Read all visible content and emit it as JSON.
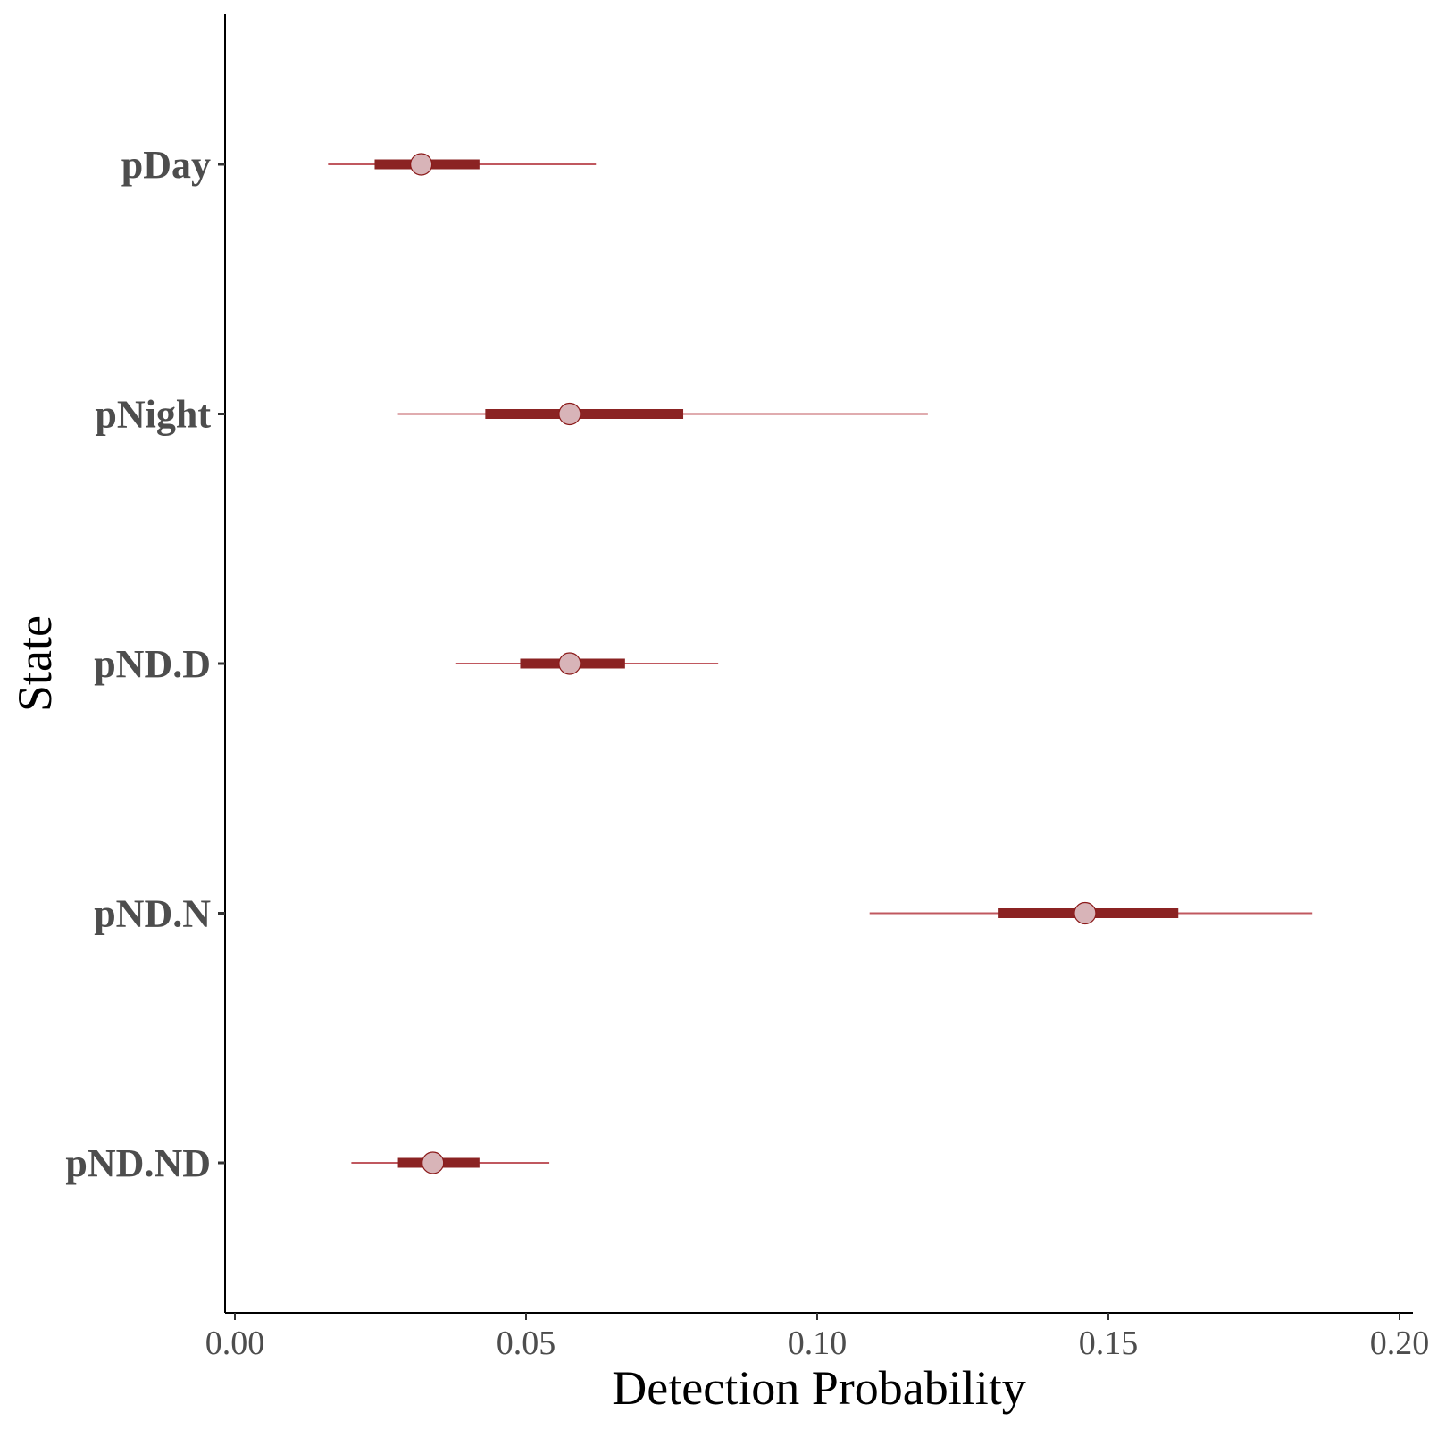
{
  "chart_data": {
    "type": "scatter",
    "subtype": "interval",
    "xlabel": "Detection Probability",
    "ylabel": "State",
    "xlim": [
      -0.0017,
      0.2017
    ],
    "xticks": [
      "0.00",
      "0.05",
      "0.10",
      "0.15",
      "0.20"
    ],
    "xtick_values": [
      0.0,
      0.05,
      0.1,
      0.15,
      0.2
    ],
    "grid": false,
    "categories": [
      "pDay",
      "pNight",
      "pND.D",
      "pND.N",
      "pND.ND"
    ],
    "series": [
      {
        "point": [
          0.032,
          0.0575,
          0.0575,
          0.146,
          0.034
        ],
        "inner_low": [
          0.024,
          0.043,
          0.049,
          0.131,
          0.028
        ],
        "inner_high": [
          0.042,
          0.077,
          0.067,
          0.162,
          0.042
        ],
        "outer_low": [
          0.016,
          0.028,
          0.038,
          0.109,
          0.02
        ],
        "outer_high": [
          0.062,
          0.119,
          0.083,
          0.185,
          0.054
        ]
      }
    ],
    "colors": {
      "outer_line": "#c0585f",
      "inner_line": "#8b2323",
      "point_fill": "#d8b4b8",
      "point_stroke": "#8b1a1a",
      "axis": "#000000"
    }
  }
}
